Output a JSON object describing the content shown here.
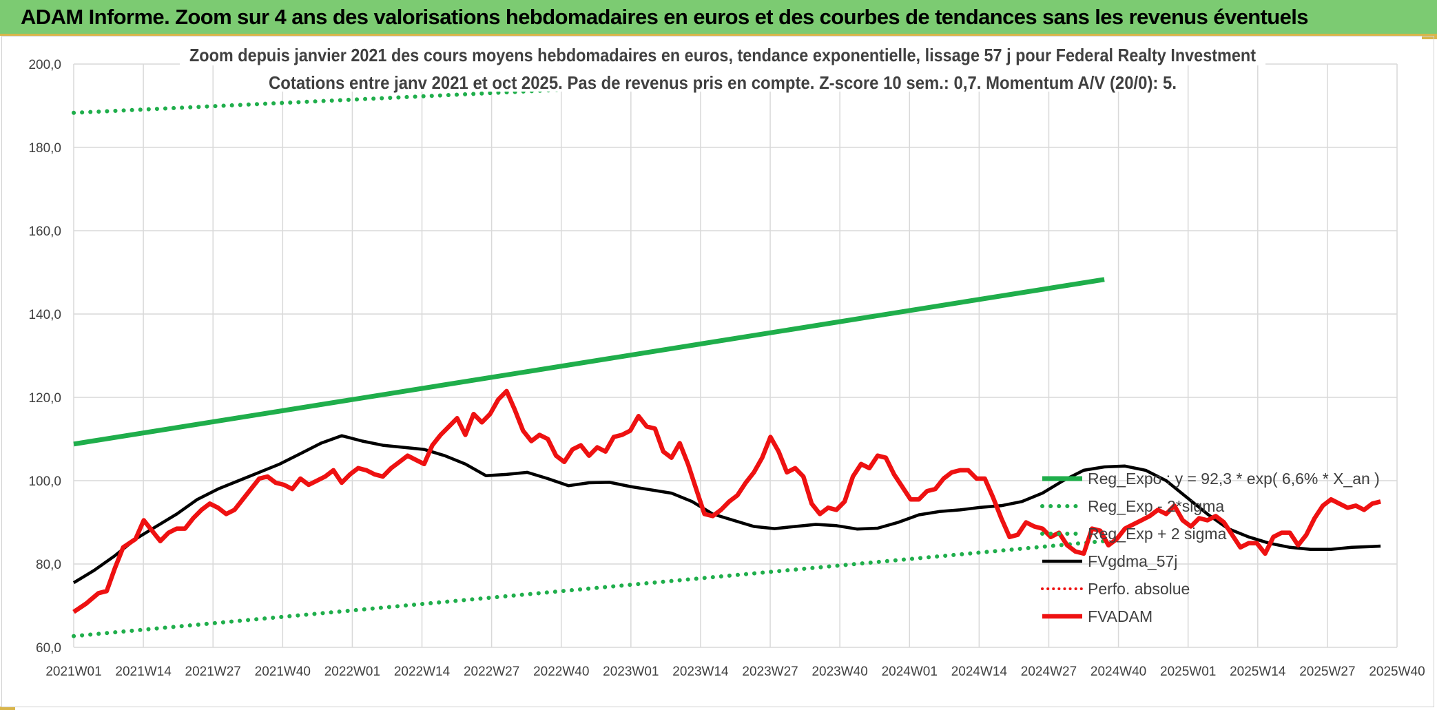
{
  "header": {
    "banner_title": "ADAM Informe. Zoom sur 4 ans des valorisations hebdomadaires en euros et des courbes de tendances sans les revenus éventuels"
  },
  "colors": {
    "banner_bg": "#7ccb72",
    "regression": "#1fae4b",
    "sigma_bands": "#1fae4b",
    "price": "#ee1111",
    "moving_average": "#000000",
    "perf_absolue": "#ee1111"
  },
  "chart_data": {
    "type": "line",
    "title": "Zoom depuis janvier 2021 des cours moyens hebdomadaires en euros, tendance exponentielle, lissage 57 j pour Federal Realty Investment",
    "subtitle": "Cotations entre janv 2021 et oct 2025. Pas de revenus pris en compte. Z-score 10 sem.: 0,7. Momentum A/V (20/0): 5.",
    "xlabel": "",
    "ylabel": "",
    "ylim": [
      60,
      200
    ],
    "yticks": [
      "60,0",
      "80,0",
      "100,0",
      "120,0",
      "140,0",
      "160,0",
      "180,0",
      "200,0"
    ],
    "xticks": [
      "2021W01",
      "2021W14",
      "2021W27",
      "2021W40",
      "2022W01",
      "2022W14",
      "2022W27",
      "2022W40",
      "2023W01",
      "2023W14",
      "2023W27",
      "2023W40",
      "2024W01",
      "2024W14",
      "2024W27",
      "2024W40",
      "2025W01",
      "2025W14",
      "2025W27",
      "2025W40"
    ],
    "grid": "vertical and horizontal",
    "legend_position": "right, lower middle",
    "series": [
      {
        "name": "Reg_Expo : y = 92,3 * exp( 6,6% *  X_an )",
        "style": "solid-thick-green",
        "points": [
          [
            0,
            108.8
          ],
          [
            250,
            148.3
          ]
        ]
      },
      {
        "name": "Reg_Exp - 2*sigma",
        "style": "dotted-green",
        "points": [
          [
            0,
            62.7
          ],
          [
            250,
            85.5
          ]
        ]
      },
      {
        "name": "Reg_Exp + 2 sigma",
        "style": "dotted-green",
        "points": [
          [
            0,
            188.3
          ],
          [
            250,
            200
          ]
        ]
      },
      {
        "name": "FVgdma_57j",
        "style": "solid-black",
        "points": [
          [
            0,
            75.5
          ],
          [
            5,
            78.5
          ],
          [
            10,
            82
          ],
          [
            15,
            86
          ],
          [
            20,
            89
          ],
          [
            25,
            92
          ],
          [
            30,
            95.5
          ],
          [
            35,
            98
          ],
          [
            40,
            100
          ],
          [
            45,
            102
          ],
          [
            50,
            104
          ],
          [
            55,
            106.5
          ],
          [
            60,
            109
          ],
          [
            65,
            110.8
          ],
          [
            70,
            109.5
          ],
          [
            75,
            108.5
          ],
          [
            80,
            108
          ],
          [
            85,
            107.5
          ],
          [
            90,
            106
          ],
          [
            95,
            104
          ],
          [
            100,
            101.2
          ],
          [
            105,
            101.5
          ],
          [
            110,
            102
          ],
          [
            115,
            100.5
          ],
          [
            120,
            98.8
          ],
          [
            125,
            99.5
          ],
          [
            130,
            99.6
          ],
          [
            135,
            98.6
          ],
          [
            140,
            97.8
          ],
          [
            145,
            97
          ],
          [
            150,
            95
          ],
          [
            155,
            92
          ],
          [
            160,
            90.5
          ],
          [
            165,
            89
          ],
          [
            170,
            88.5
          ],
          [
            175,
            89
          ],
          [
            180,
            89.5
          ],
          [
            185,
            89.2
          ],
          [
            190,
            88.4
          ],
          [
            195,
            88.6
          ],
          [
            200,
            90
          ],
          [
            205,
            91.8
          ],
          [
            210,
            92.6
          ],
          [
            215,
            93
          ],
          [
            220,
            93.6
          ],
          [
            225,
            94
          ],
          [
            230,
            95
          ],
          [
            235,
            97
          ],
          [
            240,
            100
          ],
          [
            245,
            102.5
          ],
          [
            250,
            103.3
          ],
          [
            255,
            103.5
          ],
          [
            260,
            102.5
          ],
          [
            265,
            100
          ],
          [
            270,
            96
          ],
          [
            275,
            92
          ],
          [
            280,
            88.5
          ],
          [
            285,
            86.5
          ],
          [
            290,
            85
          ],
          [
            295,
            84
          ],
          [
            300,
            83.5
          ],
          [
            305,
            83.5
          ],
          [
            310,
            84
          ],
          [
            315,
            84.2
          ],
          [
            317,
            84.3
          ]
        ]
      },
      {
        "name": "Perfo. absolue",
        "style": "dotted-red",
        "points": []
      },
      {
        "name": "FVADAM",
        "style": "solid-thick-red",
        "points": [
          [
            0,
            68.5
          ],
          [
            3,
            70.5
          ],
          [
            6,
            73
          ],
          [
            8,
            73.5
          ],
          [
            10,
            79
          ],
          [
            12,
            84
          ],
          [
            15,
            86
          ],
          [
            17,
            90.5
          ],
          [
            19,
            88
          ],
          [
            21,
            85.5
          ],
          [
            23,
            87.5
          ],
          [
            25,
            88.5
          ],
          [
            27,
            88.5
          ],
          [
            29,
            91
          ],
          [
            31,
            93
          ],
          [
            33,
            94.5
          ],
          [
            35,
            93.5
          ],
          [
            37,
            92
          ],
          [
            39,
            93
          ],
          [
            41,
            95.5
          ],
          [
            43,
            98
          ],
          [
            45,
            100.5
          ],
          [
            47,
            101
          ],
          [
            49,
            99.5
          ],
          [
            51,
            99
          ],
          [
            53,
            98
          ],
          [
            55,
            100.5
          ],
          [
            57,
            99
          ],
          [
            59,
            100
          ],
          [
            61,
            101
          ],
          [
            63,
            102.5
          ],
          [
            65,
            99.5
          ],
          [
            67,
            101.5
          ],
          [
            69,
            103
          ],
          [
            71,
            102.5
          ],
          [
            73,
            101.5
          ],
          [
            75,
            101
          ],
          [
            77,
            103
          ],
          [
            79,
            104.5
          ],
          [
            81,
            106
          ],
          [
            83,
            105
          ],
          [
            85,
            104
          ],
          [
            87,
            108.5
          ],
          [
            89,
            111
          ],
          [
            91,
            113
          ],
          [
            93,
            115
          ],
          [
            95,
            111
          ],
          [
            97,
            116
          ],
          [
            99,
            114
          ],
          [
            101,
            116
          ],
          [
            103,
            119.5
          ],
          [
            105,
            121.5
          ],
          [
            107,
            117
          ],
          [
            109,
            112
          ],
          [
            111,
            109.5
          ],
          [
            113,
            111
          ],
          [
            115,
            110
          ],
          [
            117,
            106
          ],
          [
            119,
            104.5
          ],
          [
            121,
            107.5
          ],
          [
            123,
            108.5
          ],
          [
            125,
            106
          ],
          [
            127,
            108
          ],
          [
            129,
            107
          ],
          [
            131,
            110.5
          ],
          [
            133,
            111
          ],
          [
            135,
            112
          ],
          [
            137,
            115.5
          ],
          [
            139,
            113
          ],
          [
            141,
            112.5
          ],
          [
            143,
            107
          ],
          [
            145,
            105.5
          ],
          [
            147,
            109
          ],
          [
            149,
            104
          ],
          [
            151,
            98
          ],
          [
            153,
            92
          ],
          [
            155,
            91.5
          ],
          [
            157,
            93
          ],
          [
            159,
            95
          ],
          [
            161,
            96.5
          ],
          [
            163,
            99.5
          ],
          [
            165,
            102
          ],
          [
            167,
            105.5
          ],
          [
            169,
            110.5
          ],
          [
            171,
            107
          ],
          [
            173,
            102
          ],
          [
            175,
            103
          ],
          [
            177,
            101
          ],
          [
            179,
            94.5
          ],
          [
            181,
            92
          ],
          [
            183,
            93.5
          ],
          [
            185,
            93
          ],
          [
            187,
            95
          ],
          [
            189,
            101
          ],
          [
            191,
            104
          ],
          [
            193,
            103
          ],
          [
            195,
            106
          ],
          [
            197,
            105.5
          ],
          [
            199,
            101.5
          ],
          [
            201,
            98.5
          ],
          [
            203,
            95.5
          ],
          [
            205,
            95.5
          ],
          [
            207,
            97.5
          ],
          [
            209,
            98
          ],
          [
            211,
            100.5
          ],
          [
            213,
            102
          ],
          [
            215,
            102.5
          ],
          [
            217,
            102.5
          ],
          [
            219,
            100.5
          ],
          [
            221,
            100.5
          ],
          [
            223,
            96
          ],
          [
            225,
            91
          ],
          [
            227,
            86.5
          ],
          [
            229,
            87
          ],
          [
            231,
            90
          ],
          [
            233,
            89
          ],
          [
            235,
            88.5
          ],
          [
            237,
            86.5
          ],
          [
            239,
            87.5
          ],
          [
            241,
            84.5
          ],
          [
            243,
            83
          ],
          [
            245,
            82.5
          ],
          [
            247,
            88.5
          ],
          [
            249,
            88
          ],
          [
            251,
            84.5
          ],
          [
            253,
            86
          ],
          [
            255,
            88.5
          ],
          [
            257,
            89.5
          ],
          [
            259,
            90.5
          ],
          [
            261,
            91.5
          ],
          [
            263,
            93
          ],
          [
            265,
            92
          ],
          [
            267,
            94
          ],
          [
            269,
            90.5
          ],
          [
            271,
            89
          ],
          [
            273,
            91
          ],
          [
            275,
            90.5
          ],
          [
            277,
            91.5
          ],
          [
            279,
            90
          ],
          [
            281,
            87
          ],
          [
            283,
            84
          ],
          [
            285,
            85
          ],
          [
            287,
            85
          ],
          [
            289,
            82.5
          ],
          [
            291,
            86.5
          ],
          [
            293,
            87.5
          ],
          [
            295,
            87.5
          ],
          [
            297,
            84.5
          ],
          [
            299,
            87
          ],
          [
            301,
            91
          ],
          [
            303,
            94
          ],
          [
            305,
            95.5
          ],
          [
            307,
            94.5
          ],
          [
            309,
            93.5
          ],
          [
            311,
            94
          ],
          [
            313,
            93
          ],
          [
            315,
            94.5
          ],
          [
            317,
            95
          ]
        ]
      }
    ]
  }
}
